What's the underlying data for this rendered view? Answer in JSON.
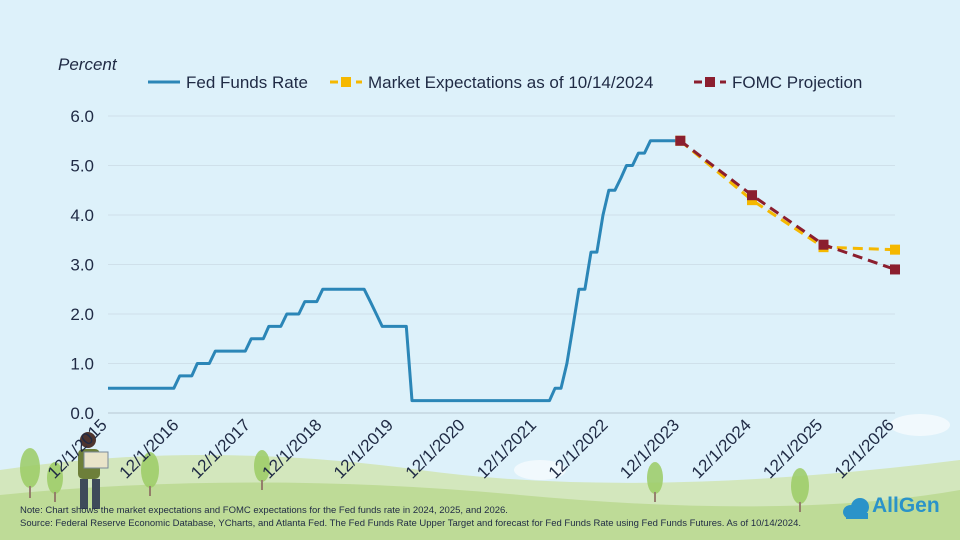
{
  "chart_data": {
    "type": "line",
    "ylabel": "Percent",
    "ylim": [
      0,
      6
    ],
    "y_ticks": [
      "0.0",
      "1.0",
      "2.0",
      "3.0",
      "4.0",
      "5.0",
      "6.0"
    ],
    "x_tick_labels": [
      "12/1/2015",
      "12/1/2016",
      "12/1/2017",
      "12/1/2018",
      "12/1/2019",
      "12/1/2020",
      "12/1/2021",
      "12/1/2022",
      "12/1/2023",
      "12/1/2024",
      "12/1/2025",
      "12/1/2026"
    ],
    "x_range": [
      "2015-12-01",
      "2026-12-01"
    ],
    "legend_position": "top",
    "series": [
      {
        "name": "Fed Funds Rate",
        "color": "#2b86b7",
        "style": "solid",
        "points": [
          [
            "2015-12-01",
            0.5
          ],
          [
            "2016-11-01",
            0.5
          ],
          [
            "2016-12-01",
            0.75
          ],
          [
            "2017-02-01",
            0.75
          ],
          [
            "2017-03-01",
            1.0
          ],
          [
            "2017-05-01",
            1.0
          ],
          [
            "2017-06-01",
            1.25
          ],
          [
            "2017-11-01",
            1.25
          ],
          [
            "2017-12-01",
            1.5
          ],
          [
            "2018-02-01",
            1.5
          ],
          [
            "2018-03-01",
            1.75
          ],
          [
            "2018-05-01",
            1.75
          ],
          [
            "2018-06-01",
            2.0
          ],
          [
            "2018-08-01",
            2.0
          ],
          [
            "2018-09-01",
            2.25
          ],
          [
            "2018-11-01",
            2.25
          ],
          [
            "2018-12-01",
            2.5
          ],
          [
            "2019-07-01",
            2.5
          ],
          [
            "2019-08-01",
            2.25
          ],
          [
            "2019-09-01",
            2.0
          ],
          [
            "2019-10-01",
            1.75
          ],
          [
            "2020-02-01",
            1.75
          ],
          [
            "2020-03-01",
            0.25
          ],
          [
            "2022-02-01",
            0.25
          ],
          [
            "2022-03-01",
            0.5
          ],
          [
            "2022-04-01",
            0.5
          ],
          [
            "2022-05-01",
            1.0
          ],
          [
            "2022-06-01",
            1.75
          ],
          [
            "2022-07-01",
            2.5
          ],
          [
            "2022-08-01",
            2.5
          ],
          [
            "2022-09-01",
            3.25
          ],
          [
            "2022-10-01",
            3.25
          ],
          [
            "2022-11-01",
            4.0
          ],
          [
            "2022-12-01",
            4.5
          ],
          [
            "2023-01-01",
            4.5
          ],
          [
            "2023-02-01",
            4.75
          ],
          [
            "2023-03-01",
            5.0
          ],
          [
            "2023-04-01",
            5.0
          ],
          [
            "2023-05-01",
            5.25
          ],
          [
            "2023-06-01",
            5.25
          ],
          [
            "2023-07-01",
            5.5
          ],
          [
            "2023-12-01",
            5.5
          ]
        ]
      },
      {
        "name": "Market Expectations as of 10/14/2024",
        "color": "#f5b800",
        "style": "dashed-square",
        "points": [
          [
            "2023-12-01",
            5.5
          ],
          [
            "2024-12-01",
            4.3
          ],
          [
            "2025-12-01",
            3.35
          ],
          [
            "2026-12-01",
            3.3
          ]
        ]
      },
      {
        "name": "FOMC Projection",
        "color": "#8b1e2e",
        "style": "dashed-square",
        "points": [
          [
            "2023-12-01",
            5.5
          ],
          [
            "2024-12-01",
            4.4
          ],
          [
            "2025-12-01",
            3.4
          ],
          [
            "2026-12-01",
            2.9
          ]
        ]
      }
    ]
  },
  "notes": {
    "line1": "Note: Chart shows the market expectations and FOMC expectations for the Fed funds rate in 2024, 2025, and 2026.",
    "line2": "Source: Federal Reserve Economic Database, YCharts, and Atlanta Fed. The Fed Funds Rate Upper Target and forecast for Fed Funds Rate using Fed Funds Futures. As of 10/14/2024."
  },
  "logo": {
    "text": "AllGen",
    "color": "#2a93c9"
  }
}
